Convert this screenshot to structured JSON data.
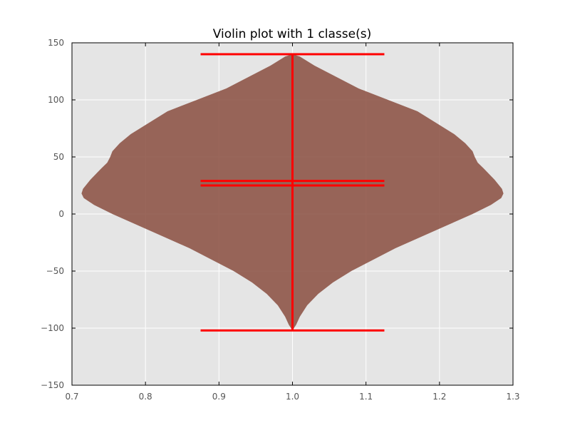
{
  "chart_data": {
    "type": "violin",
    "title": "Violin plot with 1 classe(s)",
    "xlabel": "",
    "ylabel": "",
    "xlim": [
      0.7,
      1.3
    ],
    "ylim": [
      -150,
      150
    ],
    "x_ticks": [
      0.7,
      0.8,
      0.9,
      1.0,
      1.1,
      1.2,
      1.3
    ],
    "x_tick_labels": [
      "0.7",
      "0.8",
      "0.9",
      "1.0",
      "1.1",
      "1.2",
      "1.3"
    ],
    "y_ticks": [
      150,
      100,
      50,
      0,
      -50,
      -100,
      -150
    ],
    "y_tick_labels": [
      "150",
      "100",
      "50",
      "0",
      "−50",
      "−100",
      "−150"
    ],
    "grid": true,
    "legend": "none",
    "violins": [
      {
        "position": 1.0,
        "max": 140,
        "min": -102,
        "mean": 29,
        "median": 25,
        "cap_half_width": 0.125,
        "density_profile": [
          [
            140,
            0.0
          ],
          [
            138,
            0.01
          ],
          [
            130,
            0.03
          ],
          [
            120,
            0.06
          ],
          [
            110,
            0.09
          ],
          [
            100,
            0.13
          ],
          [
            90,
            0.17
          ],
          [
            80,
            0.195
          ],
          [
            70,
            0.22
          ],
          [
            62,
            0.235
          ],
          [
            55,
            0.245
          ],
          [
            50,
            0.248
          ],
          [
            45,
            0.252
          ],
          [
            40,
            0.26
          ],
          [
            30,
            0.275
          ],
          [
            22,
            0.285
          ],
          [
            18,
            0.287
          ],
          [
            14,
            0.284
          ],
          [
            8,
            0.27
          ],
          [
            0,
            0.245
          ],
          [
            -10,
            0.21
          ],
          [
            -20,
            0.175
          ],
          [
            -30,
            0.14
          ],
          [
            -40,
            0.11
          ],
          [
            -50,
            0.08
          ],
          [
            -60,
            0.055
          ],
          [
            -70,
            0.035
          ],
          [
            -80,
            0.02
          ],
          [
            -90,
            0.01
          ],
          [
            -97,
            0.005
          ],
          [
            -102,
            0.0
          ]
        ]
      }
    ],
    "colors": {
      "plot_background": "#e5e5e5",
      "grid": "#ffffff",
      "violin_fill": "#8c5244",
      "violin_opacity": 0.88,
      "lines": "#ff0000",
      "tick_text": "#555555"
    }
  }
}
